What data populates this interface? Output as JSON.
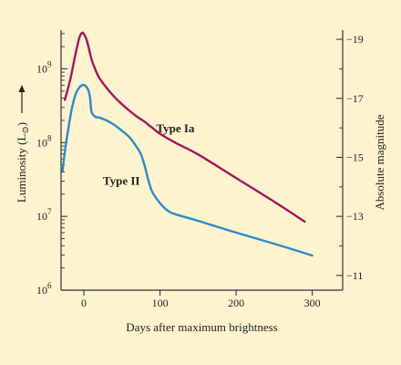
{
  "chart_data": {
    "type": "line",
    "background": "#fdf3cf",
    "xlabel": "Days after maximum brightness",
    "ylabel_left": "Luminosity (L",
    "ylabel_left_sub": "⊙",
    "ylabel_left_close": ")",
    "ylabel_right": "Absolute magnitude",
    "xlim": [
      -30,
      340
    ],
    "ylim_log10": [
      6,
      9.5
    ],
    "x_ticks": [
      {
        "value": 0,
        "label": "0"
      },
      {
        "value": 100,
        "label": "100"
      },
      {
        "value": 200,
        "label": "200"
      },
      {
        "value": 300,
        "label": "300"
      }
    ],
    "y_ticks_left": [
      {
        "exponent": 6,
        "base": "10",
        "sup": "6"
      },
      {
        "exponent": 7,
        "base": "10",
        "sup": "7"
      },
      {
        "exponent": 8,
        "base": "10",
        "sup": "8"
      },
      {
        "exponent": 9,
        "base": "10",
        "sup": "9"
      }
    ],
    "magnitude_scale": {
      "mag_at_1e7": -13,
      "mag_per_decade": -2.5
    },
    "y_ticks_right": [
      {
        "value": -19,
        "label": "−19"
      },
      {
        "value": -17,
        "label": "−17"
      },
      {
        "value": -15,
        "label": "−15"
      },
      {
        "value": -13,
        "label": "−13"
      },
      {
        "value": -11,
        "label": "−11"
      }
    ],
    "series": [
      {
        "name": "Type Ia",
        "color": "#a0175f",
        "label_at": {
          "x": 95,
          "log10_y": 8.14
        },
        "x": [
          -25,
          -18,
          -12,
          -8,
          -5,
          -2,
          0,
          3,
          6,
          10,
          15,
          20,
          30,
          40,
          50,
          60,
          70,
          80,
          90,
          100,
          120,
          150,
          200,
          250,
          290
        ],
        "log10_y": [
          8.58,
          8.85,
          9.15,
          9.34,
          9.45,
          9.49,
          9.47,
          9.41,
          9.3,
          9.13,
          8.99,
          8.88,
          8.74,
          8.62,
          8.52,
          8.43,
          8.35,
          8.28,
          8.2,
          8.12,
          8.0,
          7.84,
          7.52,
          7.2,
          6.93
        ]
      },
      {
        "name": "Type II",
        "color": "#2b8cc4",
        "label_at": {
          "x": 25,
          "log10_y": 7.43
        },
        "x": [
          -28,
          -25,
          -20,
          -15,
          -10,
          -5,
          0,
          5,
          8,
          10,
          15,
          20,
          30,
          40,
          50,
          60,
          70,
          75,
          80,
          85,
          90,
          100,
          110,
          120,
          150,
          200,
          250,
          300
        ],
        "log10_y": [
          7.62,
          7.88,
          8.22,
          8.5,
          8.68,
          8.76,
          8.78,
          8.73,
          8.62,
          8.42,
          8.35,
          8.34,
          8.3,
          8.24,
          8.16,
          8.07,
          7.93,
          7.84,
          7.68,
          7.48,
          7.33,
          7.18,
          7.08,
          7.03,
          6.94,
          6.78,
          6.63,
          6.47
        ]
      }
    ]
  }
}
